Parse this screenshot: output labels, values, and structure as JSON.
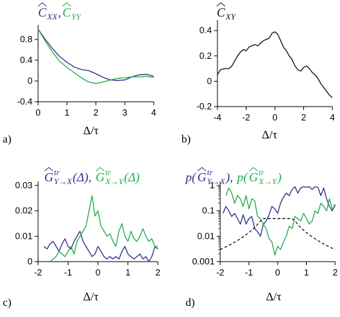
{
  "colors": {
    "blue": "#2b2f8f",
    "green": "#1faa4a",
    "black": "#111111"
  },
  "chart_data": [
    {
      "type": "line",
      "panel": "a)",
      "title_parts": [
        {
          "hat": "C",
          "sub": "XX",
          "color": "blue"
        },
        {
          "plain": ", ",
          "color": "blue"
        },
        {
          "hat": "C",
          "sub": "YY",
          "color": "green"
        }
      ],
      "xlabel": "Δ/τ",
      "xlim": [
        0,
        4
      ],
      "ylim": [
        -0.4,
        1.0
      ],
      "xticks": [
        0,
        1,
        2,
        3,
        4
      ],
      "yticks": [
        -0.4,
        0,
        0.4,
        0.8
      ],
      "ytick_labels": [
        "-0.4",
        "0",
        "0.4",
        "0.8"
      ],
      "series": [
        {
          "color": "blue",
          "x": [
            0,
            0.25,
            0.5,
            0.75,
            1.0,
            1.25,
            1.5,
            1.75,
            2.0,
            2.25,
            2.5,
            2.75,
            3.0,
            3.25,
            3.5,
            3.75,
            4.0
          ],
          "y": [
            1.0,
            0.8,
            0.62,
            0.47,
            0.36,
            0.27,
            0.22,
            0.2,
            0.14,
            0.07,
            0.02,
            0.01,
            0.02,
            0.08,
            0.12,
            0.13,
            0.09
          ]
        },
        {
          "color": "green",
          "x": [
            0,
            0.25,
            0.5,
            0.75,
            1.0,
            1.25,
            1.5,
            1.75,
            2.0,
            2.25,
            2.5,
            2.75,
            3.0,
            3.25,
            3.5,
            3.75,
            4.0
          ],
          "y": [
            1.0,
            0.77,
            0.55,
            0.38,
            0.26,
            0.16,
            0.06,
            -0.02,
            -0.05,
            -0.02,
            0.02,
            0.05,
            0.06,
            0.08,
            0.08,
            0.09,
            0.07
          ]
        }
      ]
    },
    {
      "type": "line",
      "panel": "b)",
      "title_parts": [
        {
          "hat": "C",
          "sub": "XY",
          "color": "black"
        }
      ],
      "xlabel": "Δ/τ",
      "xlim": [
        -4,
        4
      ],
      "ylim": [
        -0.2,
        0.45
      ],
      "xticks": [
        -4,
        -2,
        0,
        2,
        4
      ],
      "yticks": [
        -0.2,
        0,
        0.2,
        0.4
      ],
      "ytick_labels": [
        "-0.2",
        "0",
        "0.2",
        "0.4"
      ],
      "series": [
        {
          "color": "black",
          "x": [
            -4,
            -3.8,
            -3.5,
            -3.2,
            -3.0,
            -2.8,
            -2.6,
            -2.4,
            -2.2,
            -2.0,
            -1.8,
            -1.6,
            -1.4,
            -1.2,
            -1.0,
            -0.8,
            -0.6,
            -0.4,
            -0.2,
            0.0,
            0.2,
            0.4,
            0.6,
            0.8,
            1.0,
            1.2,
            1.4,
            1.6,
            1.8,
            2.0,
            2.2,
            2.4,
            2.6,
            2.8,
            3.0,
            3.2,
            3.4,
            3.6,
            3.8,
            4.0
          ],
          "y": [
            0.05,
            0.09,
            0.1,
            0.1,
            0.12,
            0.16,
            0.2,
            0.23,
            0.25,
            0.24,
            0.27,
            0.28,
            0.29,
            0.28,
            0.3,
            0.32,
            0.33,
            0.34,
            0.38,
            0.39,
            0.37,
            0.32,
            0.27,
            0.24,
            0.2,
            0.17,
            0.12,
            0.09,
            0.08,
            0.11,
            0.12,
            0.1,
            0.07,
            0.05,
            0.02,
            -0.02,
            -0.05,
            -0.08,
            -0.11,
            -0.13
          ]
        }
      ]
    },
    {
      "type": "line",
      "panel": "c)",
      "title_parts": [
        {
          "hat": "G",
          "sup": "tr",
          "sub": "Y→X",
          "tail": "(Δ),",
          "color": "blue"
        },
        {
          "hat": "G",
          "sup": "tr",
          "sub": "X→Y",
          "tail": "(Δ)",
          "color": "green"
        }
      ],
      "xlabel": "Δ/τ",
      "xlim": [
        -2,
        2
      ],
      "ylim": [
        0,
        0.03
      ],
      "xticks": [
        -2,
        -1,
        0,
        1,
        2
      ],
      "yticks": [
        0,
        0.01,
        0.02,
        0.03
      ],
      "ytick_labels": [
        "0",
        "0.01",
        "0.02",
        "0.03"
      ],
      "series": [
        {
          "color": "blue",
          "x": [
            -1.8,
            -1.7,
            -1.6,
            -1.5,
            -1.4,
            -1.3,
            -1.2,
            -1.1,
            -1.0,
            -0.9,
            -0.8,
            -0.7,
            -0.6,
            -0.5,
            -0.4,
            -0.3,
            -0.2,
            -0.1,
            0.0,
            0.1,
            0.2,
            0.3,
            0.4,
            0.5,
            0.6,
            0.7,
            0.8,
            0.9,
            1.0,
            1.1,
            1.2,
            1.3,
            1.4,
            1.5,
            1.6,
            1.7,
            1.8,
            1.9,
            2.0
          ],
          "y": [
            0.006,
            0.005,
            0.007,
            0.008,
            0.006,
            0.004,
            0.007,
            0.009,
            0.006,
            0.005,
            0.008,
            0.01,
            0.012,
            0.008,
            0.006,
            0.004,
            0.002,
            0.003,
            0.006,
            0.004,
            0.002,
            0.001,
            0.002,
            0.001,
            0.002,
            0.001,
            0.004,
            0.006,
            0.003,
            0.002,
            0.001,
            0.002,
            0.003,
            0.001,
            0.002,
            0.0,
            0.002,
            0.006,
            0.005
          ]
        },
        {
          "color": "green",
          "x": [
            -1.6,
            -1.5,
            -1.4,
            -1.3,
            -1.2,
            -1.1,
            -1.0,
            -0.9,
            -0.8,
            -0.7,
            -0.6,
            -0.5,
            -0.4,
            -0.3,
            -0.2,
            -0.1,
            0.0,
            0.1,
            0.2,
            0.3,
            0.4,
            0.5,
            0.6,
            0.7,
            0.8,
            0.9,
            1.0,
            1.1,
            1.2,
            1.3,
            1.4,
            1.5,
            1.6,
            1.7,
            1.8,
            1.9,
            2.0
          ],
          "y": [
            0.0,
            0.001,
            0.002,
            0.004,
            0.003,
            0.002,
            0.004,
            0.006,
            0.003,
            0.008,
            0.01,
            0.012,
            0.014,
            0.02,
            0.026,
            0.018,
            0.02,
            0.014,
            0.012,
            0.01,
            0.011,
            0.008,
            0.006,
            0.012,
            0.015,
            0.01,
            0.008,
            0.012,
            0.009,
            0.008,
            0.01,
            0.013,
            0.01,
            0.008,
            0.009,
            0.006,
            0.006
          ]
        }
      ]
    },
    {
      "type": "line",
      "panel": "d)",
      "title_parts": [
        {
          "plain": "p(",
          "color": "blue"
        },
        {
          "hat": "G",
          "sup": "tr",
          "sub": "Y→X",
          "tail": "),",
          "color": "blue"
        },
        {
          "plain": "p(",
          "color": "green"
        },
        {
          "hat": "G",
          "sup": "tr",
          "sub": "X→Y",
          "tail": ")",
          "color": "green"
        }
      ],
      "xlabel": "Δ/τ",
      "yscale": "log",
      "xlim": [
        -2,
        2
      ],
      "ylim": [
        0.001,
        1.0
      ],
      "xticks": [
        -2,
        -1,
        0,
        1,
        2
      ],
      "yticks": [
        0.001,
        0.01,
        0.1,
        1
      ],
      "ytick_labels": [
        "0.001",
        "0.01",
        "0.1",
        "1"
      ],
      "series": [
        {
          "color": "blue",
          "x": [
            -1.9,
            -1.8,
            -1.7,
            -1.6,
            -1.5,
            -1.4,
            -1.3,
            -1.2,
            -1.1,
            -1.0,
            -0.9,
            -0.8,
            -0.7,
            -0.6,
            -0.5,
            -0.4,
            -0.3,
            -0.2,
            -0.1,
            0.0,
            0.1,
            0.2,
            0.3,
            0.4,
            0.5,
            0.6,
            0.7,
            0.8,
            0.9,
            1.0,
            1.1,
            1.2,
            1.3,
            1.4,
            1.5,
            1.6,
            1.7,
            1.8,
            1.9,
            2.0
          ],
          "y": [
            0.08,
            0.15,
            0.1,
            0.06,
            0.08,
            0.05,
            0.03,
            0.07,
            0.03,
            0.05,
            0.06,
            0.02,
            0.015,
            0.01,
            0.03,
            0.04,
            0.07,
            0.15,
            0.12,
            0.08,
            0.2,
            0.35,
            0.5,
            0.4,
            0.7,
            0.9,
            0.5,
            0.8,
            0.9,
            0.85,
            0.9,
            0.7,
            0.9,
            0.85,
            0.4,
            0.8,
            0.3,
            0.15,
            0.1,
            0.18
          ]
        },
        {
          "color": "green",
          "x": [
            -1.8,
            -1.7,
            -1.6,
            -1.5,
            -1.4,
            -1.3,
            -1.2,
            -1.1,
            -1.0,
            -0.9,
            -0.8,
            -0.7,
            -0.6,
            -0.5,
            -0.4,
            -0.3,
            -0.2,
            -0.1,
            0.0,
            0.1,
            0.2,
            0.3,
            0.4,
            0.5,
            0.6,
            0.7,
            0.8,
            0.9,
            1.0,
            1.1,
            1.2,
            1.3,
            1.4,
            1.5,
            1.6,
            1.7,
            1.8,
            1.9,
            2.0
          ],
          "y": [
            0.4,
            0.8,
            0.5,
            0.2,
            0.4,
            0.3,
            0.15,
            0.4,
            0.12,
            0.3,
            0.25,
            0.06,
            0.05,
            0.03,
            0.02,
            0.008,
            0.006,
            0.0018,
            0.004,
            0.003,
            0.006,
            0.01,
            0.025,
            0.02,
            0.06,
            0.05,
            0.04,
            0.08,
            0.05,
            0.03,
            0.04,
            0.1,
            0.08,
            0.2,
            0.15,
            0.1,
            0.3,
            0.12,
            0.15
          ]
        },
        {
          "color": "black",
          "dashed": true,
          "x": [
            -2,
            -1.8,
            -1.6,
            -1.4,
            -1.2,
            -1.0,
            -0.8,
            -0.6,
            -0.5,
            -0.4,
            -0.2,
            0.0,
            0.2,
            0.4,
            0.5,
            0.6,
            0.8,
            1.0,
            1.2,
            1.4,
            1.6,
            1.8,
            2.0
          ],
          "y": [
            0.003,
            0.0038,
            0.005,
            0.0068,
            0.0095,
            0.014,
            0.022,
            0.04,
            0.05,
            0.05,
            0.05,
            0.05,
            0.05,
            0.05,
            0.05,
            0.04,
            0.022,
            0.014,
            0.0095,
            0.0068,
            0.005,
            0.0038,
            0.003
          ]
        }
      ]
    }
  ]
}
